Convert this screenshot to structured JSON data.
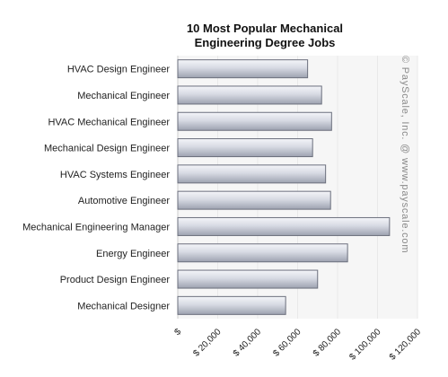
{
  "chart_data": {
    "type": "bar",
    "orientation": "horizontal",
    "title_lines": [
      "10 Most Popular Mechanical",
      "Engineering Degree Jobs"
    ],
    "categories": [
      "HVAC Design Engineer",
      "Mechanical Engineer",
      "HVAC Mechanical Engineer",
      "Mechanical Design Engineer",
      "HVAC Systems Engineer",
      "Automotive Engineer",
      "Mechanical Engineering Manager",
      "Energy Engineer",
      "Product Design Engineer",
      "Mechanical Designer"
    ],
    "values": [
      65000,
      72000,
      77000,
      67500,
      74000,
      76500,
      106000,
      85000,
      70000,
      54000
    ],
    "xlim": [
      0,
      120000
    ],
    "x_ticks": [
      0,
      20000,
      40000,
      60000,
      80000,
      100000,
      120000
    ],
    "x_tick_labels": [
      "$",
      "$ 20,000",
      "$ 40,000",
      "$ 60,000",
      "$ 80,000",
      "$ 100,000",
      "$ 120,000"
    ],
    "xlabel": "",
    "ylabel": "",
    "grid": true,
    "legend": "none",
    "colors": {
      "bar_light": "#f4f5f9",
      "bar_mid": "#d7dae3",
      "bar_dark": "#9da2b0",
      "bar_stroke": "#6b6f7d",
      "plot_bg": "#f6f6f6",
      "grid": "#e9e9e9"
    }
  },
  "watermark": "© PayScale, Inc. @ www.payscale.com"
}
